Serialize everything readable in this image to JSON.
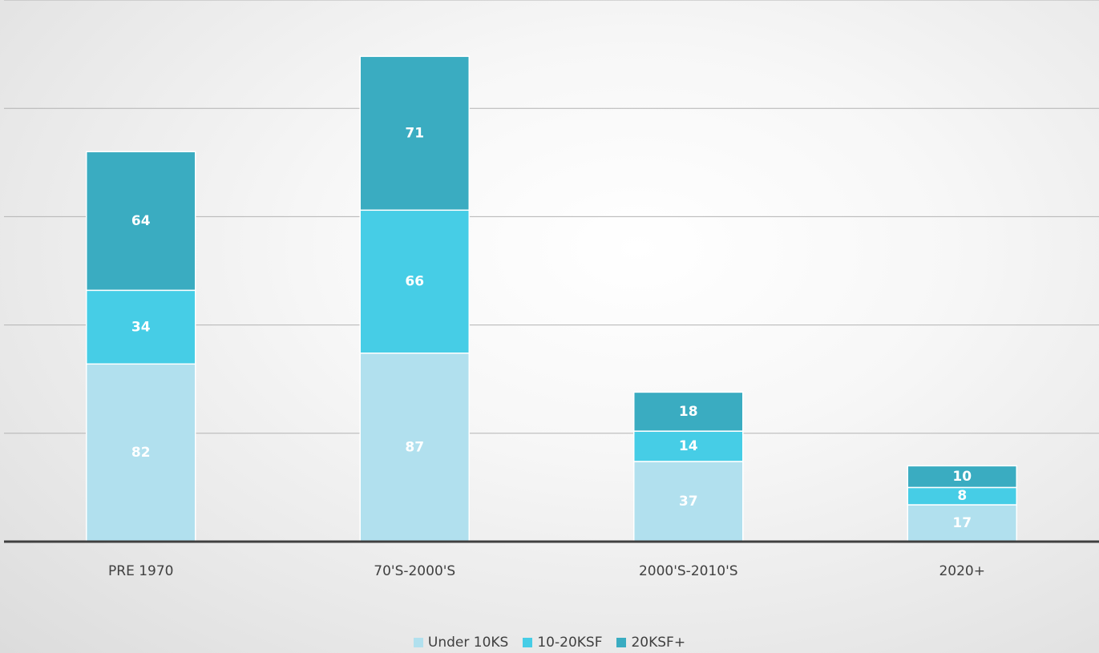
{
  "chart_data": {
    "type": "bar",
    "stacked": true,
    "title": "",
    "xlabel": "",
    "ylabel": "",
    "categories": [
      "PRE 1970",
      "70'S-2000'S",
      "2000'S-2010'S",
      "2020+"
    ],
    "series": [
      {
        "name": "Under 10KS",
        "values": [
          82,
          87,
          37,
          17
        ],
        "color": "#b1e0ee",
        "label_color": "#ffffff"
      },
      {
        "name": "10-20KSF",
        "values": [
          34,
          66,
          14,
          8
        ],
        "color": "#46cde6",
        "label_color": "#ffffff"
      },
      {
        "name": "20KSF+",
        "values": [
          64,
          71,
          18,
          10
        ],
        "color": "#3aacc1",
        "label_color": "#ffffff"
      }
    ],
    "ylim": [
      0,
      250
    ],
    "grid": true,
    "legend_position": "bottom"
  }
}
